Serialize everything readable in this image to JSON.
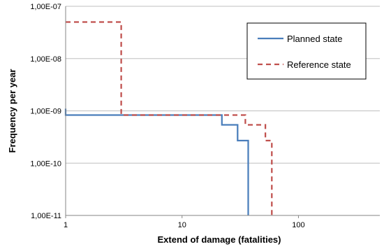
{
  "chart_data": {
    "type": "line",
    "title": "",
    "xlabel": "Extend of damage  (fatalities)",
    "ylabel": "Frequency per year",
    "x_scale": "log",
    "y_scale": "log",
    "xlim": [
      1,
      500
    ],
    "ylim": [
      1e-11,
      1e-07
    ],
    "x_ticks": [
      {
        "value": 1,
        "label": "1"
      },
      {
        "value": 10,
        "label": "10"
      },
      {
        "value": 100,
        "label": "100"
      }
    ],
    "y_ticks": [
      {
        "value": 1e-07,
        "label": "1,00E-07"
      },
      {
        "value": 1e-08,
        "label": "1,00E-08"
      },
      {
        "value": 1e-09,
        "label": "1,00E-09"
      },
      {
        "value": 1e-10,
        "label": "1,00E-10"
      },
      {
        "value": 1e-11,
        "label": "1,00E-11"
      }
    ],
    "grid": {
      "horizontal": true,
      "vertical": false
    },
    "legend": {
      "position": "top-right",
      "boxed": true
    },
    "series": [
      {
        "name": "Planned state",
        "color": "#4a7ebb",
        "dash": "solid",
        "points": [
          [
            1,
            1.1e-09
          ],
          [
            1,
            8.3e-10
          ],
          [
            22,
            8.3e-10
          ],
          [
            22,
            5.4e-10
          ],
          [
            30,
            5.4e-10
          ],
          [
            30,
            2.7e-10
          ],
          [
            37,
            2.7e-10
          ],
          [
            37,
            1e-11
          ]
        ]
      },
      {
        "name": "Reference state",
        "color": "#c0504d",
        "dash": "dashed",
        "points": [
          [
            1,
            5e-08
          ],
          [
            3,
            5e-08
          ],
          [
            3,
            8.3e-10
          ],
          [
            35,
            8.3e-10
          ],
          [
            35,
            5.4e-10
          ],
          [
            52,
            5.4e-10
          ],
          [
            52,
            2.7e-10
          ],
          [
            59,
            2.7e-10
          ],
          [
            59,
            1e-11
          ]
        ]
      }
    ]
  }
}
